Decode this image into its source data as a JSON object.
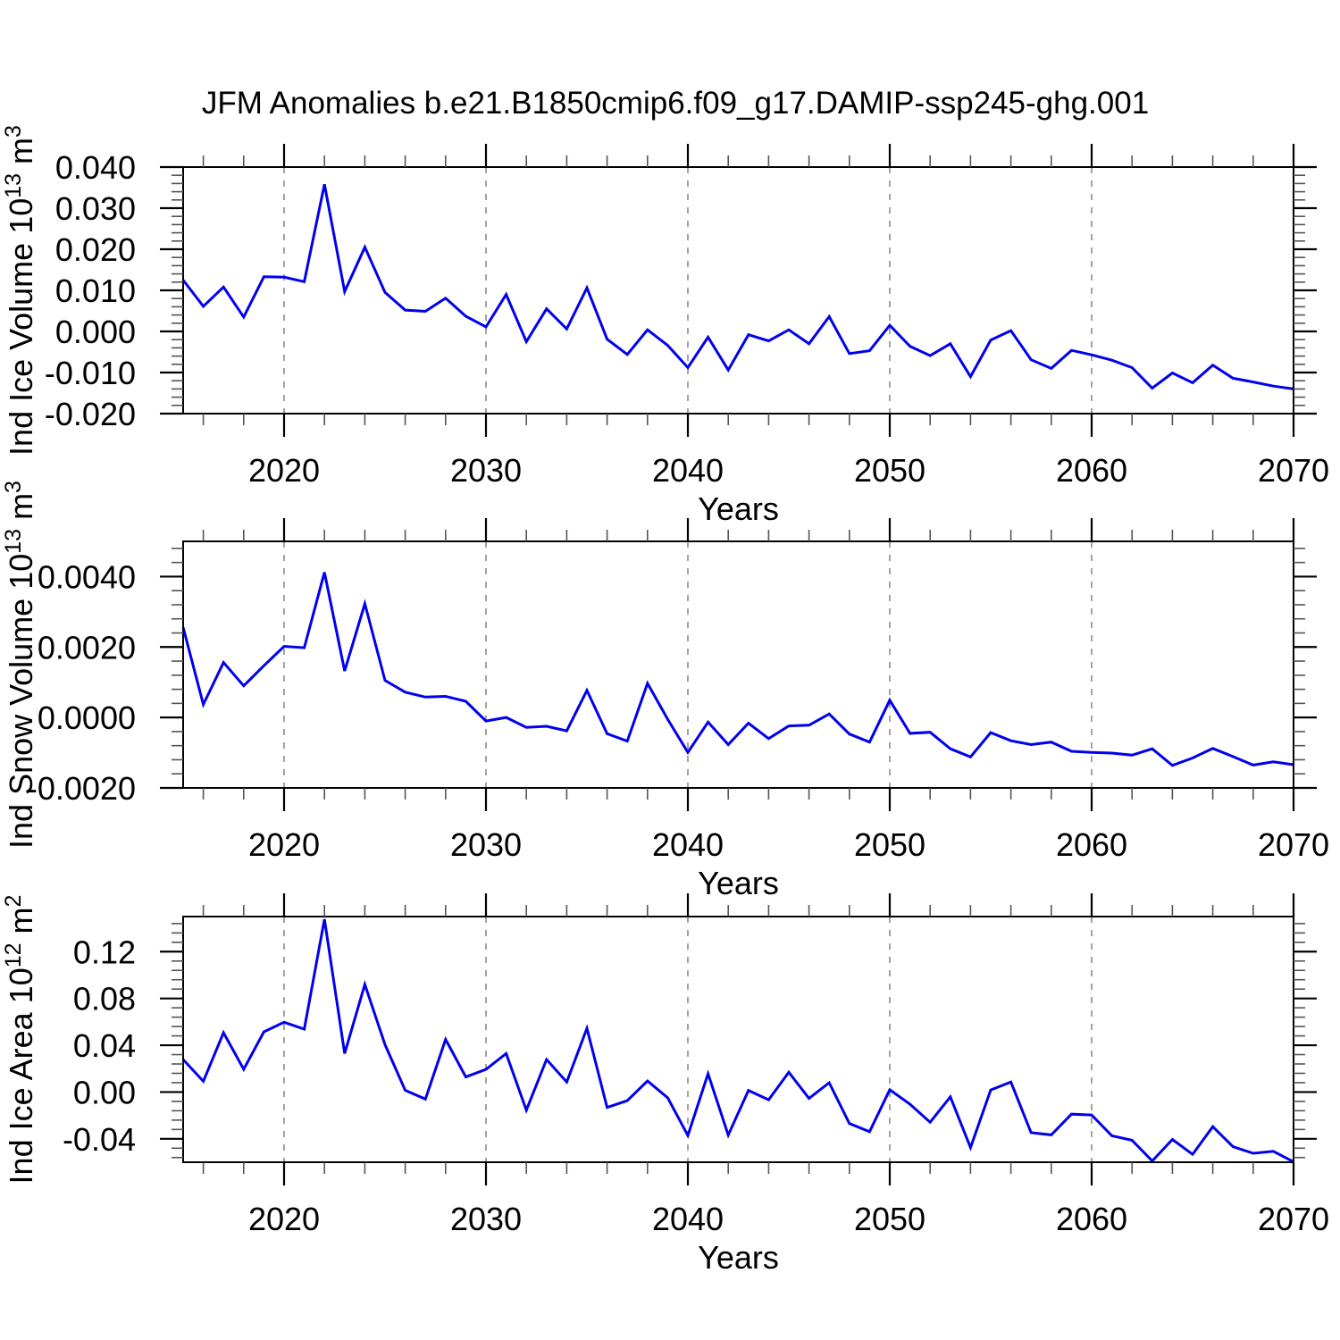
{
  "figure": {
    "title": "JFM Anomalies b.e21.B1850cmip6.f09_g17.DAMIP-ssp245-ghg.001",
    "xlabel": "Years",
    "background": "#ffffff",
    "line_color": "#0000ee",
    "grid_color": "#999999",
    "axis_color": "#000000",
    "minor_tick_color": "#555555"
  },
  "chart_data": [
    {
      "type": "line",
      "name": "ind-ice-volume",
      "ylabel_text": "Ind Ice Volume 10",
      "ylabel_exp": "13",
      "ylabel_unit": " m",
      "ylabel_unit_exp": "3",
      "xlabel": "Years",
      "xlim": [
        2015,
        2070
      ],
      "ylim": [
        -0.02,
        0.04
      ],
      "xticks": [
        2020,
        2030,
        2040,
        2050,
        2060,
        2070
      ],
      "xtick_labels": [
        "2020",
        "2030",
        "2040",
        "2050",
        "2060",
        "2070"
      ],
      "x_minor_step": 2,
      "yticks": [
        0.04,
        0.03,
        0.02,
        0.01,
        0.0,
        -0.01,
        -0.02
      ],
      "ytick_labels": [
        "0.040",
        "0.030",
        "0.020",
        "0.010",
        "0.000",
        "-0.010",
        "-0.020"
      ],
      "y_minor_step": 0.002,
      "grid_years": [
        2020,
        2030,
        2040,
        2050,
        2060
      ],
      "grid_on": true,
      "legend": "none",
      "x": [
        2015,
        2016,
        2017,
        2018,
        2019,
        2020,
        2021,
        2022,
        2023,
        2024,
        2025,
        2026,
        2027,
        2028,
        2029,
        2030,
        2031,
        2032,
        2033,
        2034,
        2035,
        2036,
        2037,
        2038,
        2039,
        2040,
        2041,
        2042,
        2043,
        2044,
        2045,
        2046,
        2047,
        2048,
        2049,
        2050,
        2051,
        2052,
        2053,
        2054,
        2055,
        2056,
        2057,
        2058,
        2059,
        2060,
        2061,
        2062,
        2063,
        2064,
        2065,
        2066,
        2067,
        2068,
        2069,
        2070
      ],
      "values": [
        0.0125,
        0.0061,
        0.0108,
        0.0035,
        0.0133,
        0.0132,
        0.0121,
        0.0358,
        0.0097,
        0.0205,
        0.0095,
        0.0052,
        0.0049,
        0.0081,
        0.0037,
        0.0011,
        0.009,
        -0.0025,
        0.0055,
        0.0006,
        0.0106,
        -0.0019,
        -0.0056,
        0.0004,
        -0.0034,
        -0.0088,
        -0.0014,
        -0.0094,
        -0.0008,
        -0.0023,
        0.0004,
        -0.003,
        0.0036,
        -0.0054,
        -0.0047,
        0.0015,
        -0.0036,
        -0.0059,
        -0.003,
        -0.011,
        -0.0021,
        0.0002,
        -0.0069,
        -0.009,
        -0.0046,
        -0.0057,
        -0.007,
        -0.0088,
        -0.0138,
        -0.0101,
        -0.0125,
        -0.0082,
        -0.0114,
        -0.0123,
        -0.0133,
        -0.014
      ]
    },
    {
      "type": "line",
      "name": "ind-snow-volume",
      "ylabel_text": "Ind Snow Volume 10",
      "ylabel_exp": "13",
      "ylabel_unit": " m",
      "ylabel_unit_exp": "3",
      "xlabel": "Years",
      "xlim": [
        2015,
        2070
      ],
      "ylim": [
        -0.002,
        0.005
      ],
      "xticks": [
        2020,
        2030,
        2040,
        2050,
        2060,
        2070
      ],
      "xtick_labels": [
        "2020",
        "2030",
        "2040",
        "2050",
        "2060",
        "2070"
      ],
      "x_minor_step": 2,
      "yticks": [
        0.004,
        0.002,
        0.0,
        -0.002
      ],
      "ytick_labels": [
        "0.0040",
        "0.0020",
        "0.0000",
        "-0.0020"
      ],
      "y_minor_step": 0.0004,
      "grid_years": [
        2020,
        2030,
        2040,
        2050,
        2060
      ],
      "grid_on": true,
      "legend": "none",
      "x": [
        2015,
        2016,
        2017,
        2018,
        2019,
        2020,
        2021,
        2022,
        2023,
        2024,
        2025,
        2026,
        2027,
        2028,
        2029,
        2030,
        2031,
        2032,
        2033,
        2034,
        2035,
        2036,
        2037,
        2038,
        2039,
        2040,
        2041,
        2042,
        2043,
        2044,
        2045,
        2046,
        2047,
        2048,
        2049,
        2050,
        2051,
        2052,
        2053,
        2054,
        2055,
        2056,
        2057,
        2058,
        2059,
        2060,
        2061,
        2062,
        2063,
        2064,
        2065,
        2066,
        2067,
        2068,
        2069,
        2070
      ],
      "values": [
        0.00256,
        0.00037,
        0.00156,
        0.0009,
        0.00147,
        0.00202,
        0.00198,
        0.00412,
        0.00132,
        0.00323,
        0.00105,
        0.00072,
        0.00058,
        0.0006,
        0.00046,
        -0.0001,
        0.0,
        -0.00028,
        -0.00025,
        -0.00038,
        0.00077,
        -0.00046,
        -0.00067,
        0.00097,
        -5e-05,
        -0.00099,
        -0.00013,
        -0.00077,
        -0.00016,
        -0.0006,
        -0.00024,
        -0.00022,
        0.0001,
        -0.00047,
        -0.0007,
        0.00049,
        -0.00045,
        -0.00042,
        -0.00089,
        -0.00112,
        -0.00043,
        -0.00066,
        -0.00077,
        -0.0007,
        -0.00096,
        -0.00099,
        -0.00101,
        -0.00107,
        -0.00089,
        -0.00136,
        -0.00115,
        -0.00088,
        -0.00111,
        -0.00135,
        -0.00126,
        -0.00134
      ]
    },
    {
      "type": "line",
      "name": "ind-ice-area",
      "ylabel_text": "Ind Ice Area 10",
      "ylabel_exp": "12",
      "ylabel_unit": " m",
      "ylabel_unit_exp": "2",
      "xlabel": "Years",
      "xlim": [
        2015,
        2070
      ],
      "ylim": [
        -0.06,
        0.15
      ],
      "xticks": [
        2020,
        2030,
        2040,
        2050,
        2060,
        2070
      ],
      "xtick_labels": [
        "2020",
        "2030",
        "2040",
        "2050",
        "2060",
        "2070"
      ],
      "x_minor_step": 2,
      "yticks": [
        0.12,
        0.08,
        0.04,
        0.0,
        -0.04
      ],
      "ytick_labels": [
        "0.12",
        "0.08",
        "0.04",
        "0.00",
        "-0.04"
      ],
      "y_minor_step": 0.008,
      "grid_years": [
        2020,
        2030,
        2040,
        2050,
        2060
      ],
      "grid_on": true,
      "legend": "none",
      "x": [
        2015,
        2016,
        2017,
        2018,
        2019,
        2020,
        2021,
        2022,
        2023,
        2024,
        2025,
        2026,
        2027,
        2028,
        2029,
        2030,
        2031,
        2032,
        2033,
        2034,
        2035,
        2036,
        2037,
        2038,
        2039,
        2040,
        2041,
        2042,
        2043,
        2044,
        2045,
        2046,
        2047,
        2048,
        2049,
        2050,
        2051,
        2052,
        2053,
        2054,
        2055,
        2056,
        2057,
        2058,
        2059,
        2060,
        2061,
        2062,
        2063,
        2064,
        2065,
        2066,
        2067,
        2068,
        2069,
        2070
      ],
      "values": [
        0.0278,
        0.0092,
        0.0507,
        0.0194,
        0.0515,
        0.0597,
        0.0538,
        0.1477,
        0.0329,
        0.092,
        0.0405,
        0.0015,
        -0.006,
        0.045,
        0.0129,
        0.0194,
        0.0329,
        -0.0155,
        0.0278,
        0.0086,
        0.0545,
        -0.0132,
        -0.0074,
        0.0095,
        -0.0049,
        -0.0372,
        0.0157,
        -0.0368,
        0.0014,
        -0.0066,
        0.0169,
        -0.0054,
        0.008,
        -0.0269,
        -0.0339,
        0.0019,
        -0.0104,
        -0.0258,
        -0.0041,
        -0.0475,
        0.0018,
        0.0086,
        -0.0347,
        -0.0366,
        -0.0189,
        -0.0196,
        -0.0374,
        -0.0412,
        -0.0589,
        -0.0405,
        -0.0533,
        -0.0296,
        -0.0467,
        -0.0524,
        -0.0507,
        -0.0597
      ]
    }
  ]
}
